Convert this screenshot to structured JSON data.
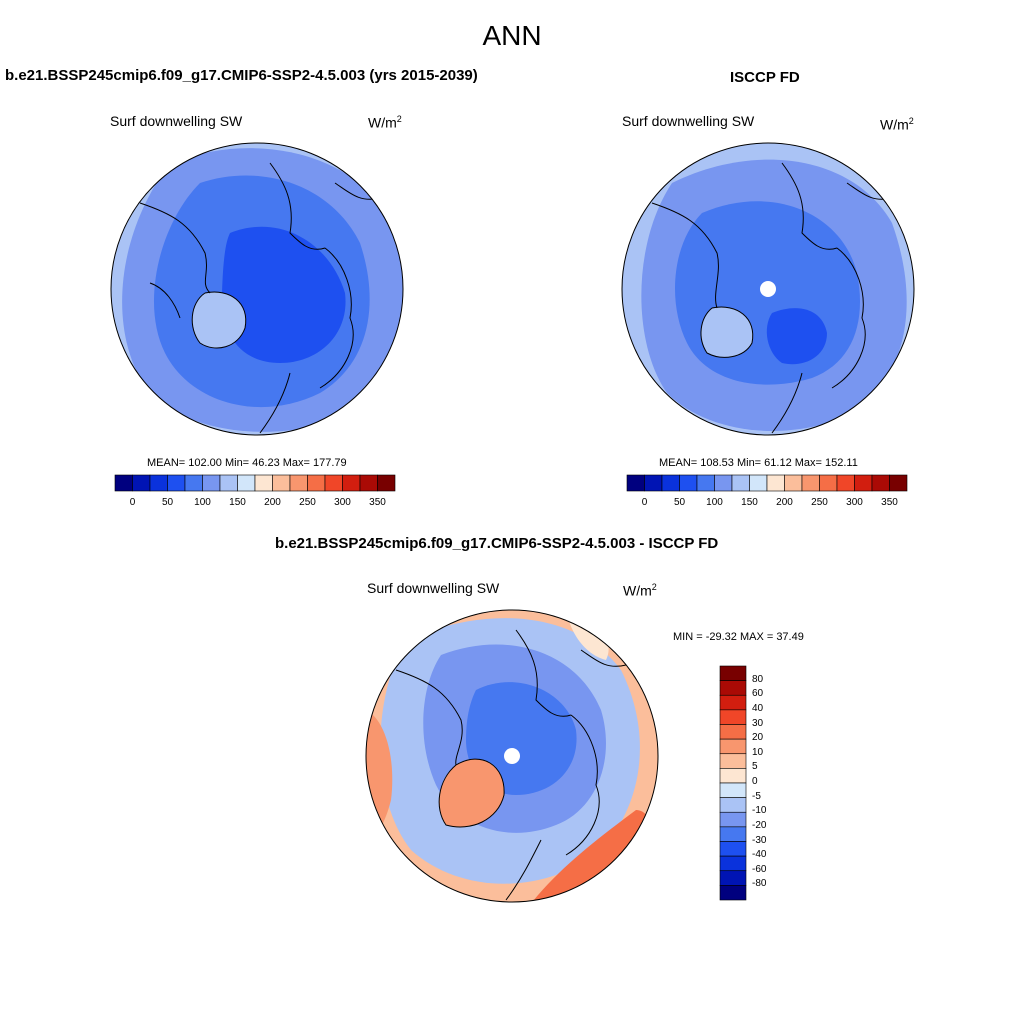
{
  "figure": {
    "title": "ANN"
  },
  "panels": {
    "model": {
      "title": "b.e21.BSSP245cmip6.f09_g17.CMIP6-SSP2-4.5.003 (yrs 2015-2039)",
      "variable": "Surf downwelling SW",
      "units_base": "W/m",
      "units_exp": "2",
      "stats": "MEAN= 102.00  Min=  46.23  Max= 177.79"
    },
    "obs": {
      "title": "ISCCP FD",
      "variable": "Surf downwelling SW",
      "units_base": "W/m",
      "units_exp": "2",
      "stats": "MEAN= 108.53  Min=  61.12  Max= 152.11"
    },
    "diff": {
      "title": "b.e21.BSSP245cmip6.f09_g17.CMIP6-SSP2-4.5.003 - ISCCP FD",
      "variable": "Surf downwelling SW",
      "units_base": "W/m",
      "units_exp": "2",
      "minmax": "MIN = -29.32 MAX =  37.49"
    }
  },
  "colorbars": {
    "abs_colors": [
      "#00007f",
      "#0014b4",
      "#0a32dc",
      "#1e50f0",
      "#4678f0",
      "#7896f0",
      "#aac3f5",
      "#d2e6fa",
      "#fde6d2",
      "#fbbe9b",
      "#f8966e",
      "#f56e46",
      "#f04628",
      "#d21e0f",
      "#aa0a05",
      "#780000"
    ],
    "abs_ticks": [
      "0",
      "50",
      "100",
      "150",
      "200",
      "250",
      "300",
      "350"
    ],
    "diff_colors": [
      "#00007f",
      "#0014b4",
      "#0a32dc",
      "#1e50f0",
      "#4678f0",
      "#7896f0",
      "#aac3f5",
      "#d2e6fa",
      "#fde6d2",
      "#fbbe9b",
      "#f8966e",
      "#f56e46",
      "#f04628",
      "#d21e0f",
      "#aa0a05",
      "#780000"
    ],
    "diff_ticks": [
      "80",
      "60",
      "40",
      "30",
      "20",
      "10",
      "5",
      "0",
      "-5",
      "-10",
      "-20",
      "-30",
      "-40",
      "-60",
      "-80"
    ]
  },
  "map_colors": {
    "ocean_far": "#aac3f5",
    "mid": "#7896f0",
    "arctic": "#4678f0",
    "core": "#1e50f0",
    "pos1": "#fde6d2",
    "pos2": "#fbbe9b",
    "pos3": "#f8966e",
    "pos4": "#f56e46",
    "coast": "#000000"
  }
}
